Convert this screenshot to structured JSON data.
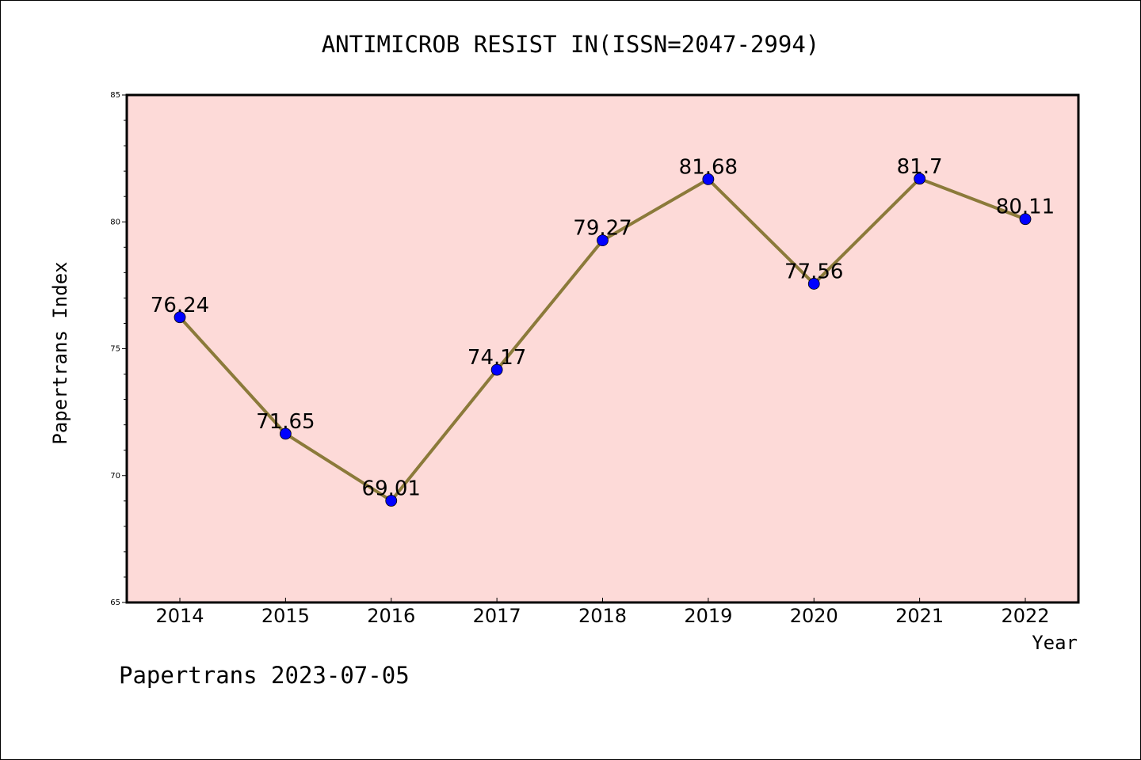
{
  "chart_data": {
    "type": "line",
    "title": "ANTIMICROB RESIST IN(ISSN=2047-2994)",
    "xlabel": "Year",
    "ylabel": "Papertrans Index",
    "categories": [
      "2014",
      "2015",
      "2016",
      "2017",
      "2018",
      "2019",
      "2020",
      "2021",
      "2022"
    ],
    "series": [
      {
        "values": [
          76.24,
          71.65,
          69.01,
          74.17,
          79.27,
          81.68,
          77.56,
          81.7,
          80.11
        ],
        "labels": [
          "76.24",
          "71.65",
          "69.01",
          "74.17",
          "79.27",
          "81.68",
          "77.56",
          "81.7",
          "80.11"
        ],
        "line_color": "#8b7a3a",
        "marker_color": "#0000ff"
      }
    ],
    "ylim": [
      65,
      85
    ],
    "yticks": [
      "65",
      "70",
      "75",
      "80",
      "85"
    ],
    "plot_background": "#fddad8",
    "grid": false
  },
  "footer": {
    "note": "Papertrans 2023-07-05"
  }
}
